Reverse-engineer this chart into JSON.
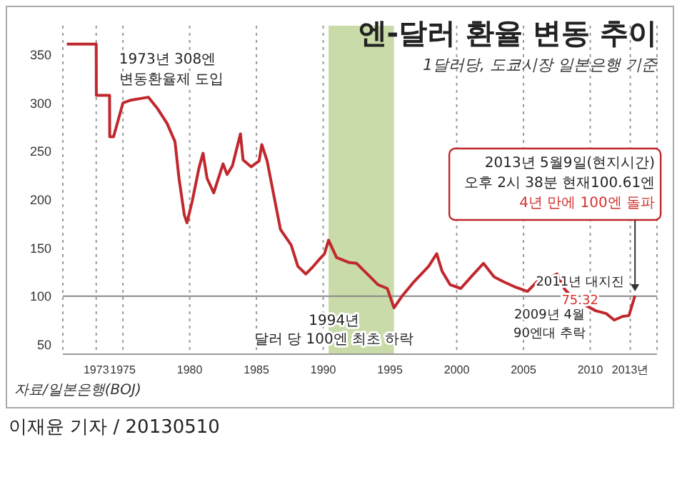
{
  "chart_data": {
    "type": "line",
    "title": "엔-달러 환율 변동 추이",
    "subtitle": "1달러당, 도쿄시장 일본은행 기준",
    "x": [
      1970.8,
      1973.0,
      1973.01,
      1974.0,
      1974.01,
      1974.3,
      1975.0,
      1975.6,
      1976.9,
      1977.6,
      1978.3,
      1978.9,
      1979.2,
      1979.6,
      1979.8,
      1980.2,
      1980.7,
      1981.0,
      1981.3,
      1981.8,
      1982.5,
      1982.8,
      1983.2,
      1983.8,
      1984.0,
      1984.6,
      1985.2,
      1985.4,
      1985.8,
      1986.8,
      1987.6,
      1988.1,
      1988.7,
      1989.2,
      1989.7,
      1990.1,
      1990.4,
      1991.0,
      1991.9,
      1992.5,
      1993.3,
      1994.1,
      1994.8,
      1995.3,
      1995.9,
      1996.8,
      1997.9,
      1998.5,
      1998.9,
      1999.5,
      2000.3,
      2001.2,
      2002.0,
      2002.8,
      2003.5,
      2004.3,
      2005.3,
      2006.0,
      2006.8,
      2007.5,
      2008.1,
      2008.8,
      2009.3,
      2009.6,
      2010.4,
      2011.2,
      2011.8,
      2012.4,
      2012.9,
      2013.35
    ],
    "series": [
      {
        "color": "#c0282d",
        "values": [
          361,
          361,
          308,
          308,
          265,
          265,
          300,
          303,
          306,
          294,
          279,
          260,
          222,
          184,
          176,
          199,
          233,
          248,
          222,
          207,
          237,
          226,
          235,
          268,
          241,
          234,
          240,
          257,
          240,
          169,
          153,
          131,
          123,
          130,
          138,
          144,
          158,
          140,
          135,
          134,
          123,
          112,
          108,
          88,
          100,
          115,
          131,
          144,
          126,
          112,
          108,
          122,
          134,
          120,
          115,
          110,
          105,
          115,
          118,
          123,
          107,
          97,
          92,
          91,
          85,
          82,
          75.32,
          79,
          80,
          100.61
        ]
      }
    ],
    "xlim": [
      1970.5,
      2015
    ],
    "xticks": [
      1973,
      1975,
      1980,
      1985,
      1990,
      1995,
      2000,
      2005,
      2010,
      {
        "value": 2013,
        "label": "2013년"
      }
    ],
    "ylim": [
      40,
      380
    ],
    "yticks": [
      50,
      100,
      150,
      200,
      250,
      300,
      350
    ],
    "grid": "x",
    "marker": "none",
    "line_style": "solid",
    "bands": [
      {
        "axis": "x",
        "from": 1990.4,
        "to": 1995.3,
        "color": "#c9dba8"
      }
    ],
    "ref_lines": [
      {
        "axis": "y",
        "value": 100,
        "color": "#888888"
      }
    ],
    "annotations": [
      {
        "text": "1973년 308엔\n변동환율제 도입",
        "x": 1973,
        "y": 308
      },
      {
        "text": "1994년\n달러 당 100엔 최초 하락",
        "x": 1995.3,
        "y": 88
      },
      {
        "text": "2009년 4월\n90엔대 추락",
        "x": 2009.3,
        "y": 92
      },
      {
        "text": "2011년 대지진\n75.32",
        "x": 2011.8,
        "y": 75.32
      },
      {
        "text": "2013년 5월9일(현지시간)\n오후 2시 38분 현재100.61엔\n4년 만에 100엔 돌파",
        "x": 2013.35,
        "y": 100.61
      },
      "자료/일본은행(BOJ)",
      "이재윤 기자 / 20130510"
    ]
  }
}
